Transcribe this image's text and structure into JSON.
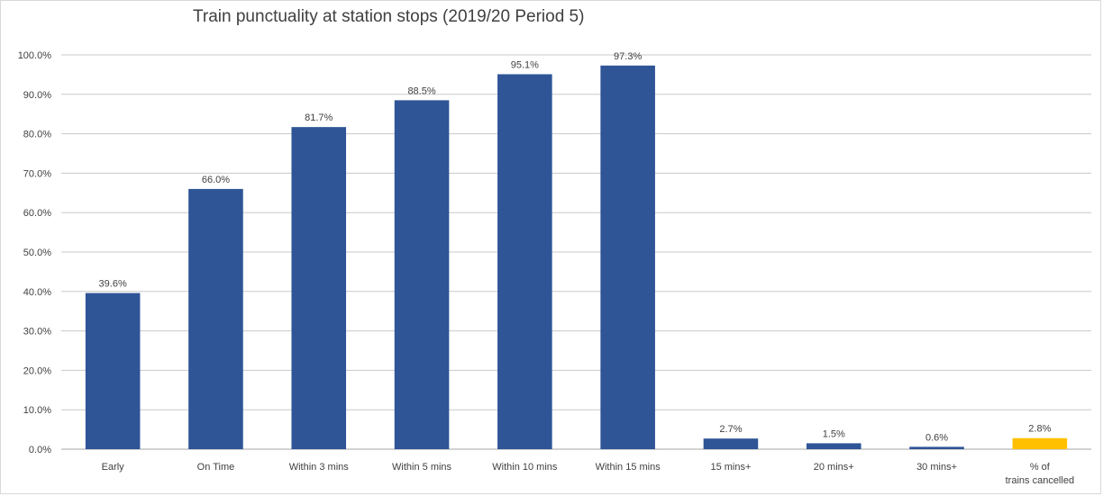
{
  "chart_data": {
    "type": "bar",
    "title": "Train punctuality at station stops (2019/20 Period 5)",
    "xlabel": "",
    "ylabel": "",
    "categories": [
      "Early",
      "On Time",
      "Within 3 mins",
      "Within 5 mins",
      "Within 10 mins",
      "Within 15 mins",
      "15 mins+",
      "20 mins+",
      "30 mins+",
      "% of trains cancelled"
    ],
    "values": [
      39.6,
      66.0,
      81.7,
      88.5,
      95.1,
      97.3,
      2.7,
      1.5,
      0.6,
      2.8
    ],
    "value_labels": [
      "39.6%",
      "66.0%",
      "81.7%",
      "88.5%",
      "95.1%",
      "97.3%",
      "2.7%",
      "1.5%",
      "0.6%",
      "2.8%"
    ],
    "ylim": [
      0,
      100
    ],
    "yticks": [
      "0.0%",
      "10.0%",
      "20.0%",
      "30.0%",
      "40.0%",
      "50.0%",
      "60.0%",
      "70.0%",
      "80.0%",
      "90.0%",
      "100.0%"
    ],
    "grid": true,
    "legend": "none",
    "colors": {
      "primary_bar": "#2f5597",
      "highlight_bar": "#ffc000",
      "gridline": "#c8c8c8"
    },
    "highlight_category": "% of trains cancelled"
  }
}
